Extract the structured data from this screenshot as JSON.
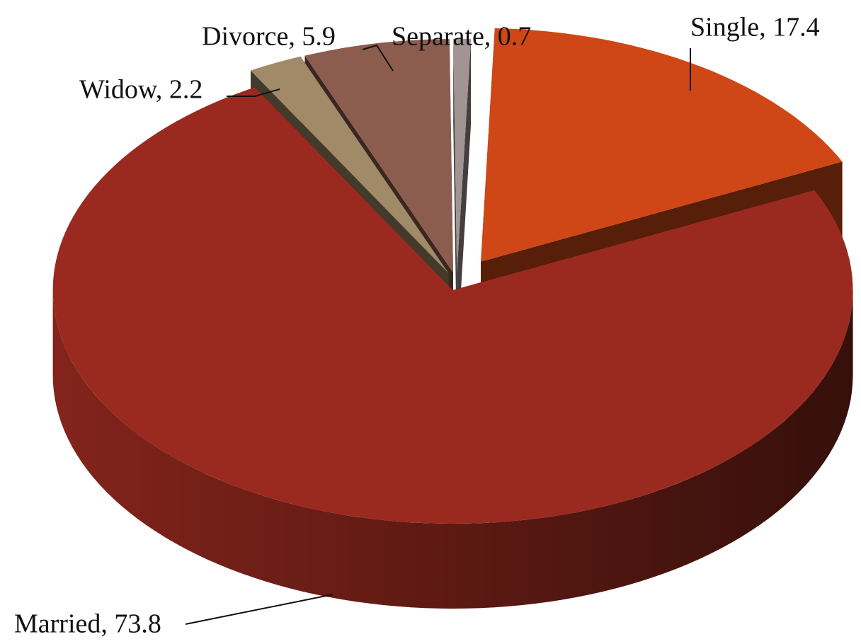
{
  "chart_data": {
    "type": "pie",
    "labels": [
      "Single, 17.4",
      "Married, 73.8",
      "Widow, 2.2",
      "Divorce, 5.9",
      "Separate, 0.7"
    ],
    "values": [
      17.4,
      73.8,
      2.2,
      5.9,
      0.7
    ],
    "colors": [
      "#cf4716",
      "#9a2a20",
      "#a08a68",
      "#8c5d4e",
      "#a39494"
    ]
  }
}
